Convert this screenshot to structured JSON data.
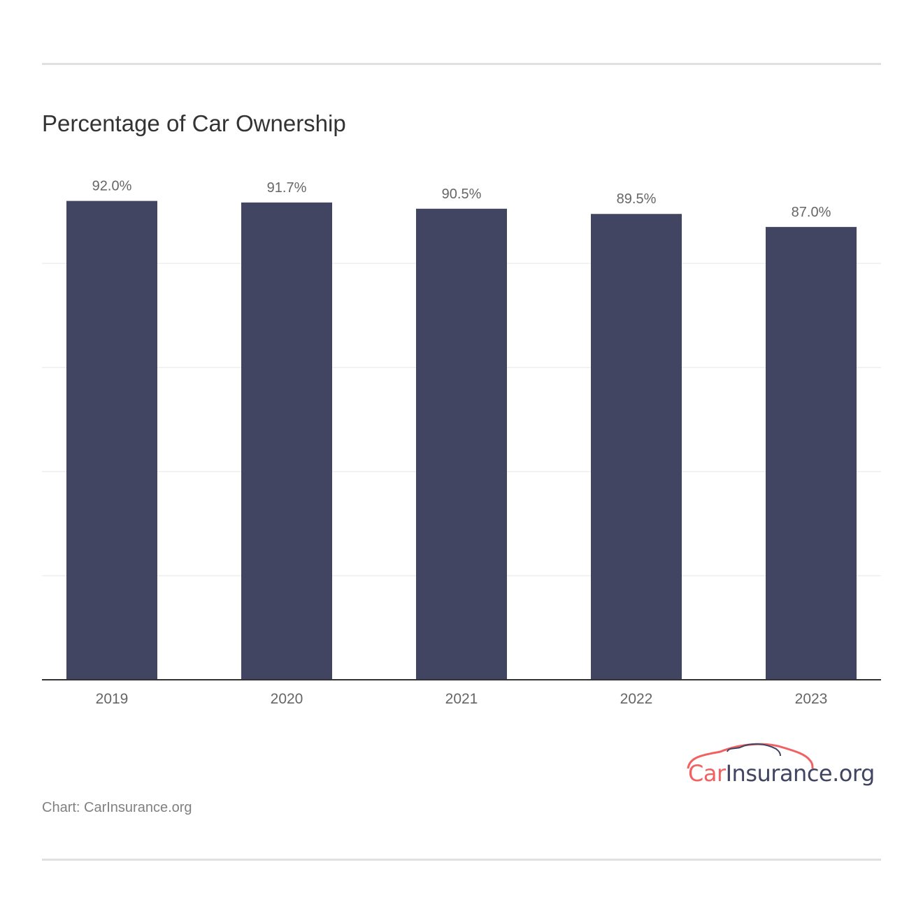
{
  "chart_data": {
    "type": "bar",
    "title": "Percentage of Car Ownership",
    "categories": [
      "2019",
      "2020",
      "2021",
      "2022",
      "2023"
    ],
    "values": [
      92.0,
      91.7,
      90.5,
      89.5,
      87.0
    ],
    "data_labels": [
      "92.0%",
      "91.7%",
      "90.5%",
      "89.5%",
      "87.0%"
    ],
    "xlabel": "",
    "ylabel": "",
    "ylim": [
      0,
      100
    ],
    "gridlines": [
      20,
      40,
      60,
      80
    ],
    "grid": true,
    "y_tick_labels_shown": false,
    "colors": {
      "bar": "#414562",
      "grid": "#e6e6e6",
      "axis": "#333333",
      "label": "#666666"
    }
  },
  "source": "Chart: CarInsurance.org",
  "logo": {
    "text_part1": "Car",
    "text_part2": "Insurance.org",
    "color1": "#f26161",
    "color2": "#414562"
  }
}
